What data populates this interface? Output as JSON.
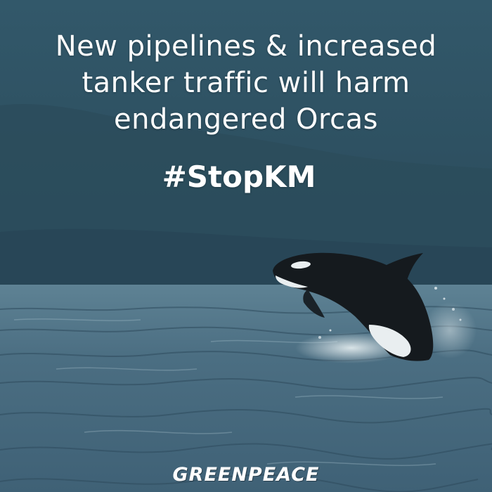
{
  "headline": {
    "lines": [
      "New pipelines & increased",
      "tanker traffic will harm",
      "endangered Orcas"
    ]
  },
  "hashtag": "#StopKM",
  "logo": "GREENPEACE",
  "colors": {
    "sky": "#2f5566",
    "mountains": "#2c4f60",
    "water": "#4d7084",
    "water_dark": "#2a4656",
    "orca_black": "#151a1e",
    "orca_white": "#e9eef0",
    "text": "#ffffff"
  },
  "scene": {
    "subject": "orca-icon",
    "setting": "water-icon"
  }
}
